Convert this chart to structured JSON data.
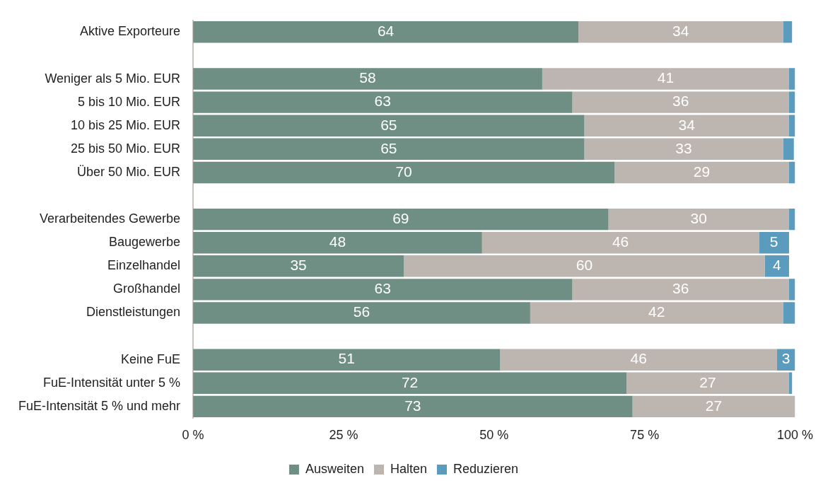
{
  "chart_data": {
    "type": "bar",
    "orientation": "horizontal",
    "stacked": true,
    "categories": [
      "Aktive Exporteure",
      null,
      "Weniger als 5 Mio. EUR",
      "5 bis 10 Mio. EUR",
      "10 bis 25 Mio. EUR",
      "25 bis 50 Mio. EUR",
      "Über 50 Mio. EUR",
      null,
      "Verarbeitendes Gewerbe",
      "Baugewerbe",
      "Einzelhandel",
      "Großhandel",
      "Dienstleistungen",
      null,
      "Keine FuE",
      "FuE-Intensität unter 5 %",
      "FuE-Intensität 5 % und mehr"
    ],
    "series": [
      {
        "name": "Ausweiten",
        "color": "#6f8f84",
        "values": [
          64,
          null,
          58,
          63,
          65,
          65,
          70,
          null,
          69,
          48,
          35,
          63,
          56,
          null,
          51,
          72,
          73
        ],
        "value_labels": [
          "64",
          null,
          "58",
          "63",
          "65",
          "65",
          "70",
          null,
          "69",
          "48",
          "35",
          "63",
          "56",
          null,
          "51",
          "72",
          "73"
        ]
      },
      {
        "name": "Halten",
        "color": "#bdb6b0",
        "values": [
          34,
          null,
          41,
          36,
          34,
          33,
          29,
          null,
          30,
          46,
          60,
          36,
          42,
          null,
          46,
          27,
          27
        ],
        "value_labels": [
          "34",
          null,
          "41",
          "36",
          "34",
          "33",
          "29",
          null,
          "30",
          "46",
          "60",
          "36",
          "42",
          null,
          "46",
          "27",
          "27"
        ]
      },
      {
        "name": "Reduzieren",
        "color": "#5b9bbd",
        "values": [
          1.5,
          null,
          1,
          1,
          1,
          1.8,
          1,
          null,
          1,
          5,
          4,
          1,
          2,
          null,
          3,
          0.5,
          null
        ],
        "value_labels": [
          null,
          null,
          null,
          null,
          null,
          null,
          null,
          null,
          null,
          "5",
          "4",
          null,
          null,
          null,
          "3",
          null,
          null
        ]
      }
    ],
    "xlim": [
      0,
      100
    ],
    "xticks": [
      {
        "value": 0,
        "label": "0 %"
      },
      {
        "value": 25,
        "label": "25 %"
      },
      {
        "value": 50,
        "label": "50 %"
      },
      {
        "value": 75,
        "label": "75 %"
      },
      {
        "value": 100,
        "label": "100 %"
      }
    ],
    "grid": false,
    "legend": "bottom"
  }
}
